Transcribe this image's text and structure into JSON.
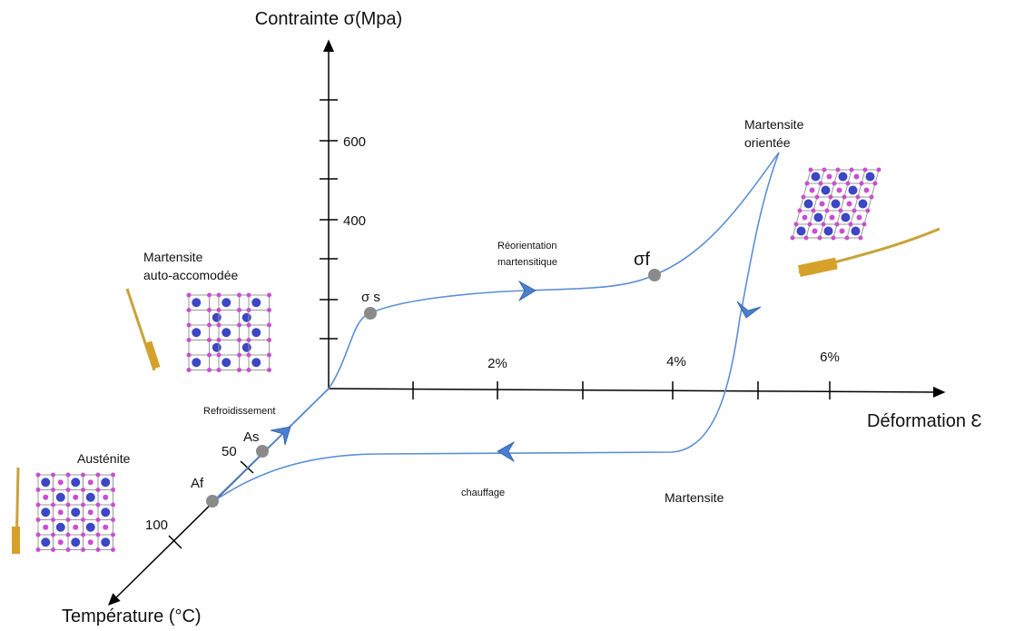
{
  "axes": {
    "stress": {
      "label": "Contrainte σ(Mpa)",
      "ticks": [
        "600",
        "400"
      ]
    },
    "strain": {
      "label": "Déformation Ɛ",
      "ticks": [
        "2%",
        "4%",
        "6%"
      ]
    },
    "temperature": {
      "label": "Température (°C)",
      "ticks": [
        "50",
        "100"
      ]
    }
  },
  "points": [
    "σ s",
    "σf",
    "As",
    "Af"
  ],
  "annotations": {
    "auto_accommodated": [
      "Martensite",
      "auto-accomodée"
    ],
    "oriented": [
      "Martensite",
      "orientée"
    ],
    "reorientation": [
      "Réorientation",
      "martensitique"
    ],
    "cooling": "Refroidissement",
    "heating": "chauffage",
    "martensite": "Martensite",
    "austenite": "Austénite"
  }
}
